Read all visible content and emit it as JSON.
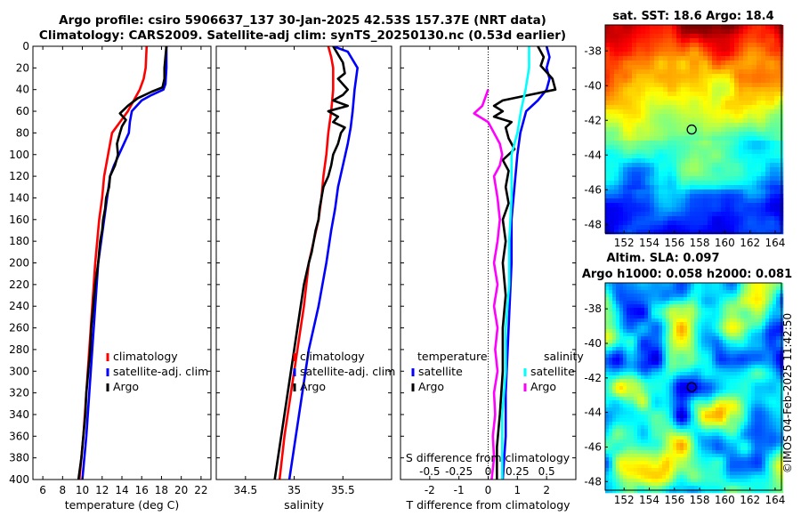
{
  "titles": {
    "line1": "Argo profile: csiro 5906637_137 30-Jan-2025 42.53S 157.37E (NRT data)",
    "line2": "Climatology: CARS2009. Satellite-adj clim: synTS_20250130.nc (0.53d earlier)"
  },
  "credit": "©IMOS 04-Feb-2025 11:42:50",
  "colors": {
    "climatology": "#ff0000",
    "satellite": "#0000ff",
    "argo": "#000000",
    "sal_satellite": "#00ffff",
    "sal_argo": "#ff00ff"
  },
  "chart_data": [
    {
      "type": "line",
      "name": "temperature",
      "xlabel": "temperature (deg C)",
      "ylabel": "",
      "xlim": [
        5,
        23
      ],
      "ylim": [
        400,
        0
      ],
      "xticks": [
        6,
        8,
        10,
        12,
        14,
        16,
        18,
        20,
        22
      ],
      "yticks": [
        0,
        20,
        40,
        60,
        80,
        100,
        120,
        140,
        160,
        180,
        200,
        220,
        240,
        260,
        280,
        300,
        320,
        340,
        360,
        380,
        400
      ],
      "legend": [
        "climatology",
        "satellite-adj. clim",
        "Argo"
      ],
      "legend_position": "lower-right",
      "series": [
        {
          "name": "climatology",
          "color": "#ff0000",
          "points": [
            [
              16.5,
              0
            ],
            [
              16.4,
              20
            ],
            [
              16.2,
              30
            ],
            [
              15.8,
              40
            ],
            [
              15.2,
              50
            ],
            [
              14.6,
              60
            ],
            [
              13.8,
              70
            ],
            [
              13.0,
              80
            ],
            [
              12.6,
              100
            ],
            [
              12.2,
              120
            ],
            [
              12.0,
              140
            ],
            [
              11.7,
              160
            ],
            [
              11.5,
              180
            ],
            [
              11.3,
              200
            ],
            [
              11.0,
              240
            ],
            [
              10.7,
              280
            ],
            [
              10.4,
              320
            ],
            [
              10.1,
              360
            ],
            [
              9.7,
              400
            ]
          ]
        },
        {
          "name": "satellite-adj. clim",
          "color": "#0000ff",
          "points": [
            [
              18.5,
              0
            ],
            [
              18.5,
              20
            ],
            [
              18.4,
              35
            ],
            [
              18.2,
              40
            ],
            [
              17.0,
              45
            ],
            [
              16.0,
              50
            ],
            [
              15.0,
              60
            ],
            [
              14.8,
              70
            ],
            [
              14.7,
              80
            ],
            [
              14.2,
              90
            ],
            [
              13.7,
              100
            ],
            [
              13.2,
              110
            ],
            [
              12.8,
              120
            ],
            [
              12.5,
              140
            ],
            [
              12.2,
              160
            ],
            [
              11.9,
              180
            ],
            [
              11.6,
              200
            ],
            [
              11.3,
              240
            ],
            [
              11.0,
              280
            ],
            [
              10.7,
              320
            ],
            [
              10.4,
              360
            ],
            [
              10.0,
              400
            ]
          ]
        },
        {
          "name": "Argo",
          "color": "#000000",
          "points": [
            [
              18.5,
              0
            ],
            [
              18.4,
              10
            ],
            [
              18.3,
              20
            ],
            [
              18.3,
              30
            ],
            [
              18.1,
              38
            ],
            [
              17.0,
              42
            ],
            [
              15.6,
              48
            ],
            [
              14.6,
              55
            ],
            [
              13.8,
              62
            ],
            [
              14.4,
              68
            ],
            [
              14.0,
              74
            ],
            [
              13.8,
              80
            ],
            [
              13.5,
              90
            ],
            [
              13.6,
              100
            ],
            [
              13.3,
              110
            ],
            [
              12.8,
              120
            ],
            [
              12.7,
              130
            ],
            [
              12.4,
              140
            ],
            [
              12.3,
              150
            ],
            [
              12.1,
              160
            ],
            [
              12.0,
              170
            ],
            [
              11.8,
              180
            ],
            [
              11.6,
              200
            ],
            [
              11.3,
              220
            ],
            [
              11.1,
              240
            ],
            [
              10.9,
              260
            ],
            [
              10.8,
              280
            ],
            [
              10.6,
              300
            ],
            [
              10.4,
              320
            ],
            [
              10.3,
              340
            ],
            [
              10.1,
              360
            ],
            [
              9.9,
              380
            ],
            [
              9.6,
              400
            ]
          ]
        }
      ]
    },
    {
      "type": "line",
      "name": "salinity",
      "xlabel": "salinity",
      "ylabel": "",
      "xlim": [
        34.2,
        36.0
      ],
      "ylim": [
        400,
        0
      ],
      "xticks": [
        34.5,
        35,
        35.5
      ],
      "legend": [
        "climatology",
        "satellite-adj. clim",
        "Argo"
      ],
      "legend_position": "lower-right",
      "series": [
        {
          "name": "climatology",
          "color": "#ff0000",
          "points": [
            [
              35.35,
              0
            ],
            [
              35.38,
              10
            ],
            [
              35.4,
              20
            ],
            [
              35.4,
              40
            ],
            [
              35.38,
              60
            ],
            [
              35.35,
              80
            ],
            [
              35.33,
              100
            ],
            [
              35.3,
              120
            ],
            [
              35.28,
              140
            ],
            [
              35.25,
              160
            ],
            [
              35.2,
              180
            ],
            [
              35.15,
              200
            ],
            [
              35.1,
              240
            ],
            [
              35.05,
              270
            ],
            [
              35.0,
              300
            ],
            [
              34.95,
              330
            ],
            [
              34.9,
              360
            ],
            [
              34.85,
              400
            ]
          ]
        },
        {
          "name": "satellite-adj. clim",
          "color": "#0000ff",
          "points": [
            [
              35.4,
              0
            ],
            [
              35.55,
              5
            ],
            [
              35.65,
              20
            ],
            [
              35.62,
              40
            ],
            [
              35.6,
              60
            ],
            [
              35.58,
              75
            ],
            [
              35.55,
              90
            ],
            [
              35.5,
              110
            ],
            [
              35.45,
              130
            ],
            [
              35.42,
              150
            ],
            [
              35.38,
              170
            ],
            [
              35.33,
              200
            ],
            [
              35.25,
              240
            ],
            [
              35.15,
              280
            ],
            [
              35.1,
              310
            ],
            [
              35.05,
              340
            ],
            [
              35.0,
              370
            ],
            [
              34.95,
              400
            ]
          ]
        },
        {
          "name": "Argo",
          "color": "#000000",
          "points": [
            [
              35.4,
              0
            ],
            [
              35.5,
              15
            ],
            [
              35.52,
              25
            ],
            [
              35.45,
              30
            ],
            [
              35.55,
              40
            ],
            [
              35.5,
              45
            ],
            [
              35.4,
              50
            ],
            [
              35.55,
              55
            ],
            [
              35.35,
              60
            ],
            [
              35.45,
              65
            ],
            [
              35.4,
              70
            ],
            [
              35.52,
              75
            ],
            [
              35.48,
              80
            ],
            [
              35.45,
              90
            ],
            [
              35.4,
              100
            ],
            [
              35.38,
              110
            ],
            [
              35.35,
              120
            ],
            [
              35.3,
              130
            ],
            [
              35.28,
              140
            ],
            [
              35.26,
              150
            ],
            [
              35.25,
              160
            ],
            [
              35.22,
              170
            ],
            [
              35.2,
              180
            ],
            [
              35.18,
              190
            ],
            [
              35.15,
              200
            ],
            [
              35.1,
              220
            ],
            [
              35.05,
              250
            ],
            [
              35.0,
              280
            ],
            [
              34.95,
              310
            ],
            [
              34.9,
              340
            ],
            [
              34.85,
              370
            ],
            [
              34.8,
              400
            ]
          ]
        }
      ]
    },
    {
      "type": "line",
      "name": "difference",
      "xlabel": "T difference from climatology",
      "top_label": "S difference from climatology",
      "xlim": [
        -3,
        3
      ],
      "ylim": [
        400,
        0
      ],
      "xticks": [
        -2,
        -1,
        0,
        1,
        2
      ],
      "s_ticks": [
        "-0.5",
        "-0.25",
        "0",
        "0.25",
        "0.5"
      ],
      "legend": {
        "temperature_heading": "temperature",
        "salinity_heading": "salinity",
        "entries": [
          "satellite",
          "Argo",
          "satellite",
          "Argo"
        ]
      },
      "series": [
        {
          "name": "T satellite",
          "color": "#0000ff",
          "points": [
            [
              2.0,
              0
            ],
            [
              2.1,
              10
            ],
            [
              2.0,
              20
            ],
            [
              2.1,
              30
            ],
            [
              2.0,
              40
            ],
            [
              1.7,
              50
            ],
            [
              1.3,
              60
            ],
            [
              1.2,
              70
            ],
            [
              1.1,
              80
            ],
            [
              1.0,
              100
            ],
            [
              0.9,
              130
            ],
            [
              0.8,
              160
            ],
            [
              0.8,
              200
            ],
            [
              0.7,
              260
            ],
            [
              0.6,
              320
            ],
            [
              0.6,
              360
            ],
            [
              0.5,
              400
            ]
          ]
        },
        {
          "name": "T Argo",
          "color": "#000000",
          "points": [
            [
              1.7,
              0
            ],
            [
              1.9,
              10
            ],
            [
              1.8,
              18
            ],
            [
              2.2,
              30
            ],
            [
              2.3,
              40
            ],
            [
              1.4,
              45
            ],
            [
              0.5,
              50
            ],
            [
              0.2,
              55
            ],
            [
              0.5,
              60
            ],
            [
              0.2,
              65
            ],
            [
              0.8,
              70
            ],
            [
              0.6,
              75
            ],
            [
              0.7,
              85
            ],
            [
              0.9,
              95
            ],
            [
              0.5,
              105
            ],
            [
              0.7,
              115
            ],
            [
              0.6,
              130
            ],
            [
              0.7,
              145
            ],
            [
              0.5,
              160
            ],
            [
              0.6,
              180
            ],
            [
              0.5,
              200
            ],
            [
              0.6,
              230
            ],
            [
              0.5,
              260
            ],
            [
              0.5,
              300
            ],
            [
              0.4,
              340
            ],
            [
              0.3,
              370
            ],
            [
              0.3,
              400
            ]
          ]
        },
        {
          "name": "S satellite",
          "color": "#00ffff",
          "points": [
            [
              0.35,
              0
            ],
            [
              0.35,
              20
            ],
            [
              0.32,
              40
            ],
            [
              0.28,
              60
            ],
            [
              0.25,
              80
            ],
            [
              0.2,
              100
            ],
            [
              0.2,
              140
            ],
            [
              0.18,
              180
            ],
            [
              0.18,
              220
            ],
            [
              0.15,
              260
            ],
            [
              0.15,
              300
            ],
            [
              0.12,
              340
            ],
            [
              0.12,
              400
            ]
          ]
        },
        {
          "name": "S Argo",
          "color": "#ff00ff",
          "points": [
            [
              0.0,
              40
            ],
            [
              -0.05,
              55
            ],
            [
              -0.12,
              62
            ],
            [
              0.0,
              70
            ],
            [
              0.05,
              80
            ],
            [
              0.1,
              90
            ],
            [
              0.12,
              100
            ],
            [
              0.1,
              110
            ],
            [
              0.05,
              120
            ],
            [
              0.08,
              140
            ],
            [
              0.1,
              160
            ],
            [
              0.08,
              180
            ],
            [
              0.05,
              200
            ],
            [
              0.08,
              220
            ],
            [
              0.05,
              240
            ],
            [
              0.08,
              260
            ],
            [
              0.06,
              280
            ],
            [
              0.08,
              300
            ],
            [
              0.05,
              320
            ],
            [
              0.06,
              340
            ],
            [
              0.04,
              360
            ],
            [
              0.05,
              380
            ],
            [
              0.03,
              400
            ]
          ]
        }
      ]
    },
    {
      "type": "heatmap",
      "name": "sst-map",
      "title": "sat. SST: 18.6 Argo: 18.4",
      "lon_range": [
        150.5,
        164.5
      ],
      "lat_range": [
        -48.5,
        -36.5
      ],
      "xticks": [
        152,
        154,
        156,
        158,
        160,
        162,
        164
      ],
      "yticks": [
        -38,
        -40,
        -42,
        -44,
        -46,
        -48
      ],
      "marker": {
        "lon": 157.37,
        "lat": -42.53
      }
    },
    {
      "type": "heatmap",
      "name": "sla-map",
      "title1": "Altim. SLA: 0.097",
      "title2": "Argo h1000: 0.058 h2000: 0.081",
      "lon_range": [
        150.5,
        164.5
      ],
      "lat_range": [
        -48.5,
        -36.5
      ],
      "xticks": [
        152,
        154,
        156,
        158,
        160,
        162,
        164
      ],
      "yticks": [
        -38,
        -40,
        -42,
        -44,
        -46,
        -48
      ],
      "marker": {
        "lon": 157.37,
        "lat": -42.53
      }
    }
  ]
}
